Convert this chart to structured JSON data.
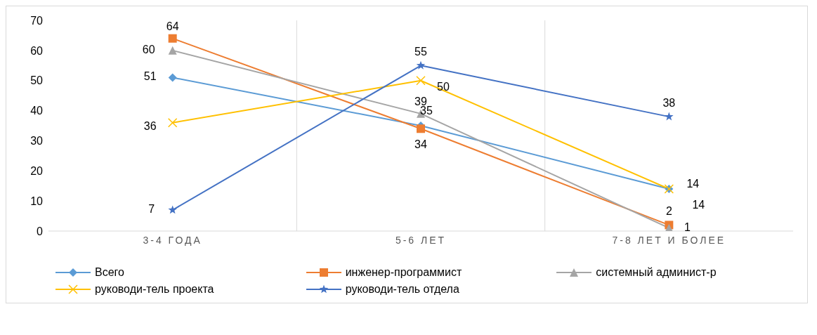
{
  "chart_data": {
    "type": "line",
    "categories": [
      "3-4 ГОДА",
      "5-6 ЛЕТ",
      "7-8 ЛЕТ И БОЛЕЕ"
    ],
    "series": [
      {
        "name": "Всего",
        "color": "#5b9bd5",
        "marker": "diamond",
        "values": [
          51,
          35,
          14
        ]
      },
      {
        "name": "инженер-программист",
        "color": "#ed7d31",
        "marker": "square",
        "values": [
          64,
          34,
          2
        ]
      },
      {
        "name": "системный админист-р",
        "color": "#a5a5a5",
        "marker": "triangle",
        "values": [
          60,
          39,
          1
        ]
      },
      {
        "name": "руководи-тель проекта",
        "color": "#ffc000",
        "marker": "cross",
        "values": [
          36,
          50,
          14
        ]
      },
      {
        "name": "руководи-тель отдела",
        "color": "#4472c4",
        "marker": "star",
        "values": [
          7,
          55,
          38
        ]
      }
    ],
    "ylim": [
      0,
      70
    ],
    "yticks": [
      0,
      10,
      20,
      30,
      40,
      50,
      60,
      70
    ],
    "grid": "x",
    "legend": "bottom",
    "data_labels": true
  }
}
